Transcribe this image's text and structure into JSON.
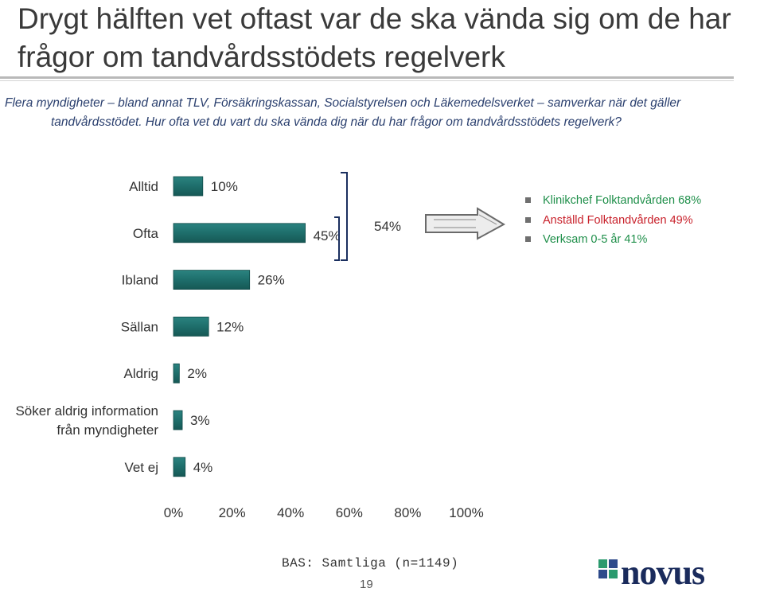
{
  "title": "Drygt hälften vet oftast var de ska vända sig om de har frågor om tandvårdsstödets regelverk",
  "subtitle_line1": "Flera myndigheter – bland annat TLV, Försäkringskassan, Socialstyrelsen och Läkemedelsverket – samverkar när det gäller",
  "subtitle_line2": "tandvårdsstödet. Hur ofta vet du vart du ska vända dig när du har frågor om tandvårdsstödets regelverk?",
  "chart_data": {
    "type": "bar",
    "orientation": "horizontal",
    "categories": [
      "Alltid",
      "Ofta",
      "Ibland",
      "Sällan",
      "Aldrig",
      "Söker aldrig information från myndigheter",
      "Vet ej"
    ],
    "values": [
      10,
      45,
      26,
      12,
      2,
      3,
      4
    ],
    "value_labels": [
      "10%",
      "45%",
      "26%",
      "12%",
      "2%",
      "3%",
      "4%"
    ],
    "xlim": [
      0,
      100
    ],
    "x_ticks": [
      "0%",
      "20%",
      "40%",
      "60%",
      "80%",
      "100%"
    ],
    "grid": false,
    "bar_color": "#1e6e6b",
    "bracket_label": "54%",
    "annotations": [
      {
        "text": "Klinikchef Folktandvården 68%",
        "color": "#1f8f4a"
      },
      {
        "text": "Anställd Folktandvården 49%",
        "color": "#c8202a"
      },
      {
        "text": "Verksam 0-5 år 41%",
        "color": "#1f8f4a"
      }
    ]
  },
  "footer": {
    "base": "BAS: Samtliga (n=1149)",
    "page": "19",
    "logo_text": "novus"
  }
}
